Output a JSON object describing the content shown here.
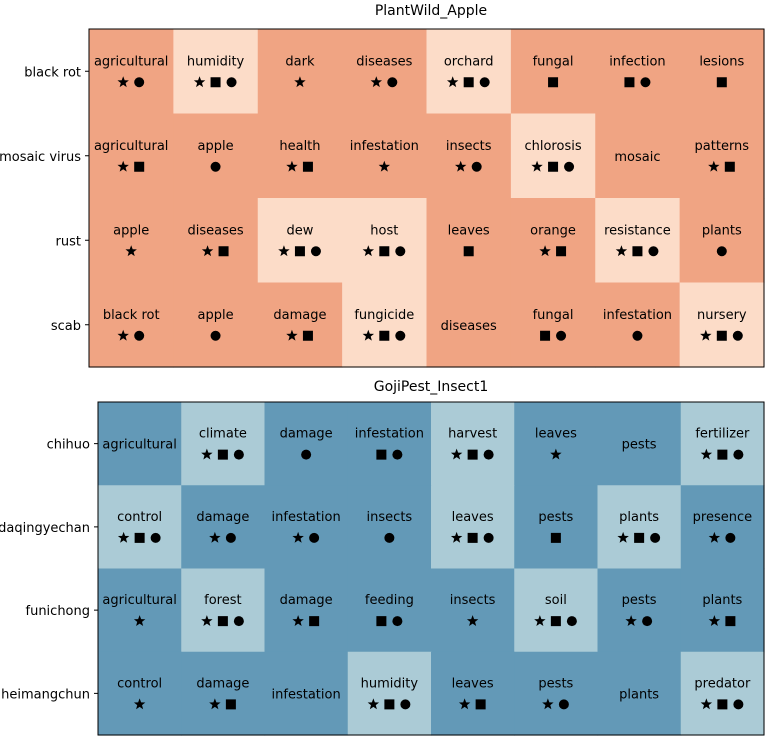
{
  "chart_data": [
    {
      "type": "heatmap",
      "title": "PlantWild_Apple",
      "rows": [
        "black rot",
        "mosaic virus",
        "rust",
        "scab"
      ],
      "colors": {
        "base": "#F0A483",
        "highlight": "#FCDCC8"
      },
      "cells": [
        [
          {
            "word": "agricultural",
            "markers": [
              "star",
              "circle"
            ],
            "highlight": false
          },
          {
            "word": "humidity",
            "markers": [
              "star",
              "square",
              "circle"
            ],
            "highlight": true
          },
          {
            "word": "dark",
            "markers": [
              "star"
            ],
            "highlight": false
          },
          {
            "word": "diseases",
            "markers": [
              "star",
              "circle"
            ],
            "highlight": false
          },
          {
            "word": "orchard",
            "markers": [
              "star",
              "square",
              "circle"
            ],
            "highlight": true
          },
          {
            "word": "fungal",
            "markers": [
              "square"
            ],
            "highlight": false
          },
          {
            "word": "infection",
            "markers": [
              "square",
              "circle"
            ],
            "highlight": false
          },
          {
            "word": "lesions",
            "markers": [
              "square"
            ],
            "highlight": false
          }
        ],
        [
          {
            "word": "agricultural",
            "markers": [
              "star",
              "square"
            ],
            "highlight": false
          },
          {
            "word": "apple",
            "markers": [
              "circle"
            ],
            "highlight": false
          },
          {
            "word": "health",
            "markers": [
              "star",
              "square"
            ],
            "highlight": false
          },
          {
            "word": "infestation",
            "markers": [
              "star"
            ],
            "highlight": false
          },
          {
            "word": "insects",
            "markers": [
              "star",
              "circle"
            ],
            "highlight": false
          },
          {
            "word": "chlorosis",
            "markers": [
              "star",
              "square",
              "circle"
            ],
            "highlight": true
          },
          {
            "word": "mosaic",
            "markers": [],
            "highlight": false
          },
          {
            "word": "patterns",
            "markers": [
              "star",
              "square"
            ],
            "highlight": false
          }
        ],
        [
          {
            "word": "apple",
            "markers": [
              "star"
            ],
            "highlight": false
          },
          {
            "word": "diseases",
            "markers": [
              "star",
              "square"
            ],
            "highlight": false
          },
          {
            "word": "dew",
            "markers": [
              "star",
              "square",
              "circle"
            ],
            "highlight": true
          },
          {
            "word": "host",
            "markers": [
              "star",
              "square",
              "circle"
            ],
            "highlight": true
          },
          {
            "word": "leaves",
            "markers": [
              "square"
            ],
            "highlight": false
          },
          {
            "word": "orange",
            "markers": [
              "star",
              "square"
            ],
            "highlight": false
          },
          {
            "word": "resistance",
            "markers": [
              "star",
              "square",
              "circle"
            ],
            "highlight": true
          },
          {
            "word": "plants",
            "markers": [
              "circle"
            ],
            "highlight": false
          }
        ],
        [
          {
            "word": "black rot",
            "markers": [
              "star",
              "circle"
            ],
            "highlight": false
          },
          {
            "word": "apple",
            "markers": [
              "circle"
            ],
            "highlight": false
          },
          {
            "word": "damage",
            "markers": [
              "star",
              "square"
            ],
            "highlight": false
          },
          {
            "word": "fungicide",
            "markers": [
              "star",
              "square",
              "circle"
            ],
            "highlight": true
          },
          {
            "word": "diseases",
            "markers": [],
            "highlight": false
          },
          {
            "word": "fungal",
            "markers": [
              "square",
              "circle"
            ],
            "highlight": false
          },
          {
            "word": "infestation",
            "markers": [
              "circle"
            ],
            "highlight": false
          },
          {
            "word": "nursery",
            "markers": [
              "star",
              "square",
              "circle"
            ],
            "highlight": true
          }
        ]
      ]
    },
    {
      "type": "heatmap",
      "title": "GojiPest_Insect1",
      "rows": [
        "chihuo",
        "daqingyechan",
        "funichong",
        "heimangchun"
      ],
      "colors": {
        "base": "#6399B7",
        "highlight": "#ABCBD6"
      },
      "cells": [
        [
          {
            "word": "agricultural",
            "markers": [],
            "highlight": false
          },
          {
            "word": "climate",
            "markers": [
              "star",
              "square",
              "circle"
            ],
            "highlight": true
          },
          {
            "word": "damage",
            "markers": [
              "circle"
            ],
            "highlight": false
          },
          {
            "word": "infestation",
            "markers": [
              "square",
              "circle"
            ],
            "highlight": false
          },
          {
            "word": "harvest",
            "markers": [
              "star",
              "square",
              "circle"
            ],
            "highlight": true
          },
          {
            "word": "leaves",
            "markers": [
              "star"
            ],
            "highlight": false
          },
          {
            "word": "pests",
            "markers": [],
            "highlight": false
          },
          {
            "word": "fertilizer",
            "markers": [
              "star",
              "square",
              "circle"
            ],
            "highlight": true
          }
        ],
        [
          {
            "word": "control",
            "markers": [
              "star",
              "square",
              "circle"
            ],
            "highlight": true
          },
          {
            "word": "damage",
            "markers": [
              "star",
              "circle"
            ],
            "highlight": false
          },
          {
            "word": "infestation",
            "markers": [
              "star",
              "circle"
            ],
            "highlight": false
          },
          {
            "word": "insects",
            "markers": [
              "circle"
            ],
            "highlight": false
          },
          {
            "word": "leaves",
            "markers": [
              "star",
              "square",
              "circle"
            ],
            "highlight": true
          },
          {
            "word": "pests",
            "markers": [
              "square"
            ],
            "highlight": false
          },
          {
            "word": "plants",
            "markers": [
              "star",
              "square",
              "circle"
            ],
            "highlight": true
          },
          {
            "word": "presence",
            "markers": [
              "star",
              "circle"
            ],
            "highlight": false
          }
        ],
        [
          {
            "word": "agricultural",
            "markers": [
              "star"
            ],
            "highlight": false
          },
          {
            "word": "forest",
            "markers": [
              "star",
              "square",
              "circle"
            ],
            "highlight": true
          },
          {
            "word": "damage",
            "markers": [
              "star",
              "square"
            ],
            "highlight": false
          },
          {
            "word": "feeding",
            "markers": [
              "square",
              "circle"
            ],
            "highlight": false
          },
          {
            "word": "insects",
            "markers": [
              "star"
            ],
            "highlight": false
          },
          {
            "word": "soil",
            "markers": [
              "star",
              "square",
              "circle"
            ],
            "highlight": true
          },
          {
            "word": "pests",
            "markers": [
              "star",
              "circle"
            ],
            "highlight": false
          },
          {
            "word": "plants",
            "markers": [
              "star",
              "square"
            ],
            "highlight": false
          }
        ],
        [
          {
            "word": "control",
            "markers": [
              "star"
            ],
            "highlight": false
          },
          {
            "word": "damage",
            "markers": [
              "star",
              "square"
            ],
            "highlight": false
          },
          {
            "word": "infestation",
            "markers": [],
            "highlight": false
          },
          {
            "word": "humidity",
            "markers": [
              "star",
              "square",
              "circle"
            ],
            "highlight": true
          },
          {
            "word": "leaves",
            "markers": [
              "star",
              "square"
            ],
            "highlight": false
          },
          {
            "word": "pests",
            "markers": [
              "star",
              "circle"
            ],
            "highlight": false
          },
          {
            "word": "plants",
            "markers": [],
            "highlight": false
          },
          {
            "word": "predator",
            "markers": [
              "star",
              "square",
              "circle"
            ],
            "highlight": true
          }
        ]
      ]
    }
  ]
}
